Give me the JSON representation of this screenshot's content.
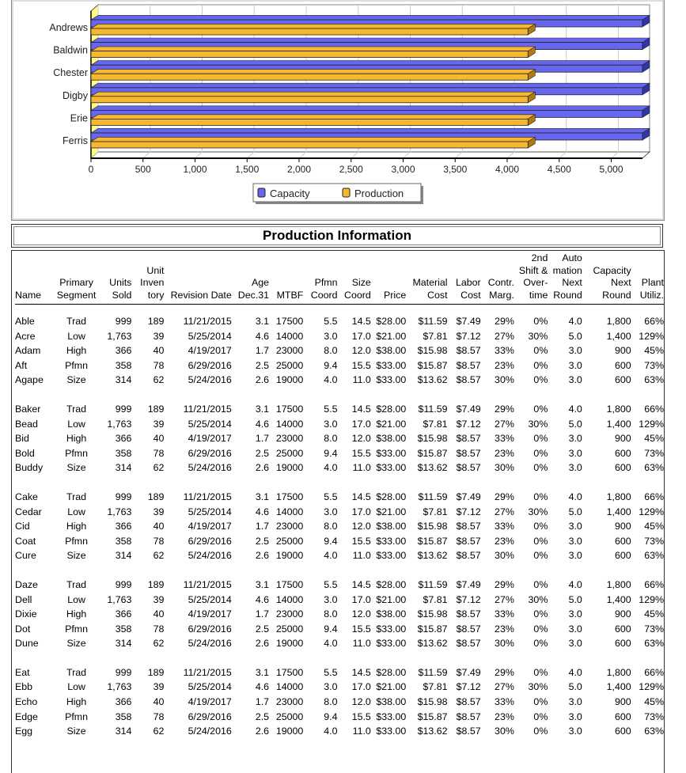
{
  "chart_data": {
    "type": "bar",
    "orientation": "horizontal",
    "categories": [
      "Andrews",
      "Baldwin",
      "Chester",
      "Digby",
      "Erie",
      "Ferris"
    ],
    "series": [
      {
        "name": "Capacity",
        "color": "#6666ee",
        "values": [
          5300,
          5300,
          5300,
          5300,
          5300,
          5300
        ]
      },
      {
        "name": "Production",
        "color": "#f5b830",
        "values": [
          4200,
          4200,
          4200,
          4200,
          4200,
          4200
        ]
      }
    ],
    "xlim": [
      0,
      5300
    ],
    "x_ticks": [
      "0",
      "500",
      "1,000",
      "1,500",
      "2,000",
      "2,500",
      "3,000",
      "3,500",
      "4,000",
      "4,500",
      "5,000"
    ],
    "grid": true,
    "legend": "bottom"
  },
  "section_title": "Production Information",
  "columns": [
    {
      "key": "name",
      "label": "Name"
    },
    {
      "key": "segment",
      "label": "Primary Segment"
    },
    {
      "key": "sold",
      "label": "Units Sold"
    },
    {
      "key": "inv",
      "label": "Unit Inven tory"
    },
    {
      "key": "rev",
      "label": "Revision Date"
    },
    {
      "key": "age",
      "label": "Age Dec.31"
    },
    {
      "key": "mtbf",
      "label": "MTBF"
    },
    {
      "key": "pfmn",
      "label": "Pfmn Coord"
    },
    {
      "key": "size",
      "label": "Size Coord"
    },
    {
      "key": "price",
      "label": "Price"
    },
    {
      "key": "mat",
      "label": "Material Cost"
    },
    {
      "key": "labor",
      "label": "Labor Cost"
    },
    {
      "key": "marg",
      "label": "Contr. Marg."
    },
    {
      "key": "ot",
      "label": "2nd Shift & Over- time"
    },
    {
      "key": "auto",
      "label": "Auto mation Next Round"
    },
    {
      "key": "cap",
      "label": "Capacity Next Round"
    },
    {
      "key": "util",
      "label": "Plant Utiliz."
    }
  ],
  "header_lines": [
    [
      "Name"
    ],
    [
      "Primary",
      "Segment"
    ],
    [
      "Units",
      "Sold"
    ],
    [
      "Unit",
      "Inven",
      "tory"
    ],
    [
      "Revision Date"
    ],
    [
      "Age",
      "Dec.31"
    ],
    [
      "MTBF"
    ],
    [
      "Pfmn",
      "Coord"
    ],
    [
      "Size",
      "Coord"
    ],
    [
      "Price"
    ],
    [
      "Material",
      "Cost"
    ],
    [
      "Labor",
      "Cost"
    ],
    [
      "Contr.",
      "Marg."
    ],
    [
      "2nd",
      "Shift &",
      "Over-",
      "time"
    ],
    [
      "Auto",
      "mation",
      "Next",
      "Round"
    ],
    [
      "Capacity",
      "Next",
      "Round"
    ],
    [
      "Plant",
      "Utiliz."
    ]
  ],
  "groups": [
    [
      [
        "Able",
        "Trad",
        "999",
        "189",
        "11/21/2015",
        "3.1",
        "17500",
        "5.5",
        "14.5",
        "$28.00",
        "$11.59",
        "$7.49",
        "29%",
        "0%",
        "4.0",
        "1,800",
        "66%"
      ],
      [
        "Acre",
        "Low",
        "1,763",
        "39",
        "5/25/2014",
        "4.6",
        "14000",
        "3.0",
        "17.0",
        "$21.00",
        "$7.81",
        "$7.12",
        "27%",
        "30%",
        "5.0",
        "1,400",
        "129%"
      ],
      [
        "Adam",
        "High",
        "366",
        "40",
        "4/19/2017",
        "1.7",
        "23000",
        "8.0",
        "12.0",
        "$38.00",
        "$15.98",
        "$8.57",
        "33%",
        "0%",
        "3.0",
        "900",
        "45%"
      ],
      [
        "Aft",
        "Pfmn",
        "358",
        "78",
        "6/29/2016",
        "2.5",
        "25000",
        "9.4",
        "15.5",
        "$33.00",
        "$15.87",
        "$8.57",
        "23%",
        "0%",
        "3.0",
        "600",
        "73%"
      ],
      [
        "Agape",
        "Size",
        "314",
        "62",
        "5/24/2016",
        "2.6",
        "19000",
        "4.0",
        "11.0",
        "$33.00",
        "$13.62",
        "$8.57",
        "30%",
        "0%",
        "3.0",
        "600",
        "63%"
      ]
    ],
    [
      [
        "Baker",
        "Trad",
        "999",
        "189",
        "11/21/2015",
        "3.1",
        "17500",
        "5.5",
        "14.5",
        "$28.00",
        "$11.59",
        "$7.49",
        "29%",
        "0%",
        "4.0",
        "1,800",
        "66%"
      ],
      [
        "Bead",
        "Low",
        "1,763",
        "39",
        "5/25/2014",
        "4.6",
        "14000",
        "3.0",
        "17.0",
        "$21.00",
        "$7.81",
        "$7.12",
        "27%",
        "30%",
        "5.0",
        "1,400",
        "129%"
      ],
      [
        "Bid",
        "High",
        "366",
        "40",
        "4/19/2017",
        "1.7",
        "23000",
        "8.0",
        "12.0",
        "$38.00",
        "$15.98",
        "$8.57",
        "33%",
        "0%",
        "3.0",
        "900",
        "45%"
      ],
      [
        "Bold",
        "Pfmn",
        "358",
        "78",
        "6/29/2016",
        "2.5",
        "25000",
        "9.4",
        "15.5",
        "$33.00",
        "$15.87",
        "$8.57",
        "23%",
        "0%",
        "3.0",
        "600",
        "73%"
      ],
      [
        "Buddy",
        "Size",
        "314",
        "62",
        "5/24/2016",
        "2.6",
        "19000",
        "4.0",
        "11.0",
        "$33.00",
        "$13.62",
        "$8.57",
        "30%",
        "0%",
        "3.0",
        "600",
        "63%"
      ]
    ],
    [
      [
        "Cake",
        "Trad",
        "999",
        "189",
        "11/21/2015",
        "3.1",
        "17500",
        "5.5",
        "14.5",
        "$28.00",
        "$11.59",
        "$7.49",
        "29%",
        "0%",
        "4.0",
        "1,800",
        "66%"
      ],
      [
        "Cedar",
        "Low",
        "1,763",
        "39",
        "5/25/2014",
        "4.6",
        "14000",
        "3.0",
        "17.0",
        "$21.00",
        "$7.81",
        "$7.12",
        "27%",
        "30%",
        "5.0",
        "1,400",
        "129%"
      ],
      [
        "Cid",
        "High",
        "366",
        "40",
        "4/19/2017",
        "1.7",
        "23000",
        "8.0",
        "12.0",
        "$38.00",
        "$15.98",
        "$8.57",
        "33%",
        "0%",
        "3.0",
        "900",
        "45%"
      ],
      [
        "Coat",
        "Pfmn",
        "358",
        "78",
        "6/29/2016",
        "2.5",
        "25000",
        "9.4",
        "15.5",
        "$33.00",
        "$15.87",
        "$8.57",
        "23%",
        "0%",
        "3.0",
        "600",
        "73%"
      ],
      [
        "Cure",
        "Size",
        "314",
        "62",
        "5/24/2016",
        "2.6",
        "19000",
        "4.0",
        "11.0",
        "$33.00",
        "$13.62",
        "$8.57",
        "30%",
        "0%",
        "3.0",
        "600",
        "63%"
      ]
    ],
    [
      [
        "Daze",
        "Trad",
        "999",
        "189",
        "11/21/2015",
        "3.1",
        "17500",
        "5.5",
        "14.5",
        "$28.00",
        "$11.59",
        "$7.49",
        "29%",
        "0%",
        "4.0",
        "1,800",
        "66%"
      ],
      [
        "Dell",
        "Low",
        "1,763",
        "39",
        "5/25/2014",
        "4.6",
        "14000",
        "3.0",
        "17.0",
        "$21.00",
        "$7.81",
        "$7.12",
        "27%",
        "30%",
        "5.0",
        "1,400",
        "129%"
      ],
      [
        "Dixie",
        "High",
        "366",
        "40",
        "4/19/2017",
        "1.7",
        "23000",
        "8.0",
        "12.0",
        "$38.00",
        "$15.98",
        "$8.57",
        "33%",
        "0%",
        "3.0",
        "900",
        "45%"
      ],
      [
        "Dot",
        "Pfmn",
        "358",
        "78",
        "6/29/2016",
        "2.5",
        "25000",
        "9.4",
        "15.5",
        "$33.00",
        "$15.87",
        "$8.57",
        "23%",
        "0%",
        "3.0",
        "600",
        "73%"
      ],
      [
        "Dune",
        "Size",
        "314",
        "62",
        "5/24/2016",
        "2.6",
        "19000",
        "4.0",
        "11.0",
        "$33.00",
        "$13.62",
        "$8.57",
        "30%",
        "0%",
        "3.0",
        "600",
        "63%"
      ]
    ],
    [
      [
        "Eat",
        "Trad",
        "999",
        "189",
        "11/21/2015",
        "3.1",
        "17500",
        "5.5",
        "14.5",
        "$28.00",
        "$11.59",
        "$7.49",
        "29%",
        "0%",
        "4.0",
        "1,800",
        "66%"
      ],
      [
        "Ebb",
        "Low",
        "1,763",
        "39",
        "5/25/2014",
        "4.6",
        "14000",
        "3.0",
        "17.0",
        "$21.00",
        "$7.81",
        "$7.12",
        "27%",
        "30%",
        "5.0",
        "1,400",
        "129%"
      ],
      [
        "Echo",
        "High",
        "366",
        "40",
        "4/19/2017",
        "1.7",
        "23000",
        "8.0",
        "12.0",
        "$38.00",
        "$15.98",
        "$8.57",
        "33%",
        "0%",
        "3.0",
        "900",
        "45%"
      ],
      [
        "Edge",
        "Pfmn",
        "358",
        "78",
        "6/29/2016",
        "2.5",
        "25000",
        "9.4",
        "15.5",
        "$33.00",
        "$15.87",
        "$8.57",
        "23%",
        "0%",
        "3.0",
        "600",
        "73%"
      ],
      [
        "Egg",
        "Size",
        "314",
        "62",
        "5/24/2016",
        "2.6",
        "19000",
        "4.0",
        "11.0",
        "$33.00",
        "$13.62",
        "$8.57",
        "30%",
        "0%",
        "3.0",
        "600",
        "63%"
      ]
    ]
  ]
}
